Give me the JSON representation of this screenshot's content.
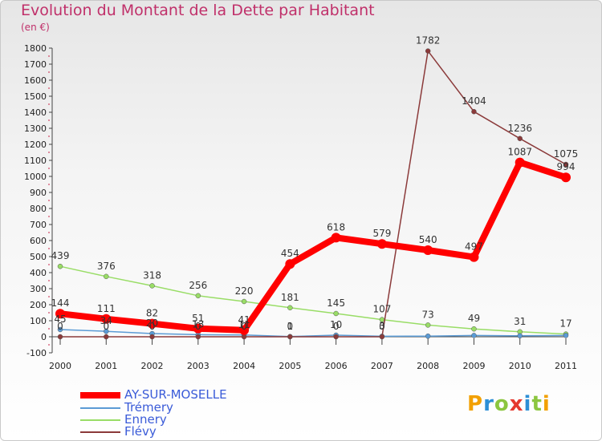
{
  "title": "Evolution du Montant de la Dette par Habitant",
  "subtitle": "(en €)",
  "logo": "Proxiti",
  "chart_data": {
    "type": "line",
    "x": [
      "2000",
      "2001",
      "2002",
      "2003",
      "2004",
      "2005",
      "2006",
      "2007",
      "2008",
      "2009",
      "2010",
      "2011"
    ],
    "ylim": [
      -100,
      1800
    ],
    "yticks": [
      -100,
      0,
      100,
      200,
      300,
      400,
      500,
      600,
      700,
      800,
      900,
      1000,
      1100,
      1200,
      1300,
      1400,
      1500,
      1600,
      1700,
      1800
    ],
    "grid": false,
    "legend_position": "bottom-left",
    "series": [
      {
        "name": "AY-SUR-MOSELLE",
        "color": "#ff0000",
        "width": 8,
        "marker": 6,
        "values": [
          144,
          111,
          82,
          51,
          41,
          454,
          618,
          579,
          540,
          497,
          1087,
          994
        ],
        "labels": [
          "144",
          "111",
          "82",
          "51",
          "41",
          "454",
          "618",
          "579",
          "540",
          "497",
          "1087",
          "994"
        ]
      },
      {
        "name": "Trémery",
        "color": "#5b9bd5",
        "width": 1.5,
        "marker": 3,
        "values": [
          45,
          34,
          20,
          13,
          11,
          1,
          10,
          3,
          4,
          8,
          6,
          8
        ],
        "labels": [
          "45",
          "34",
          "20",
          "13",
          "11",
          "1",
          "10",
          "3",
          "",
          "",
          "",
          ""
        ]
      },
      {
        "name": "Ennery",
        "color": "#99dd66",
        "width": 1.5,
        "marker": 3,
        "values": [
          439,
          376,
          318,
          256,
          220,
          181,
          145,
          107,
          73,
          49,
          31,
          17
        ],
        "labels": [
          "439",
          "376",
          "318",
          "256",
          "220",
          "181",
          "145",
          "107",
          "73",
          "49",
          "31",
          "17"
        ]
      },
      {
        "name": "Flévy",
        "color": "#8b3a3a",
        "width": 1.5,
        "marker": 3,
        "values": [
          0,
          0,
          0,
          0,
          0,
          0,
          0,
          0,
          1782,
          1404,
          1236,
          1075
        ],
        "labels": [
          "0",
          "0",
          "0",
          "0",
          "0",
          "0",
          "0",
          "0",
          "1782",
          "1404",
          "1236",
          "1075"
        ]
      }
    ]
  }
}
